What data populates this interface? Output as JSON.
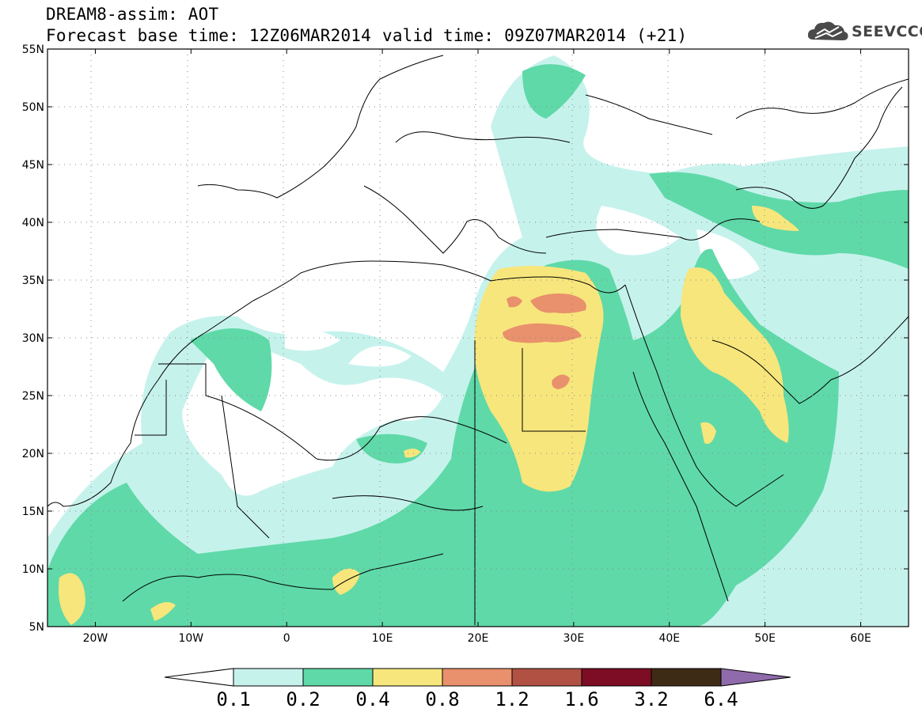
{
  "header": {
    "title": "DREAM8-assim: AOT",
    "base_time": "Forecast base time: 12Z06MAR2014",
    "valid_time": "valid time: 09Z07MAR2014 (+21)"
  },
  "logo": {
    "text": "SEEVCCC",
    "icon": "cloud-icon"
  },
  "map": {
    "lat_labels": [
      "55N",
      "50N",
      "45N",
      "40N",
      "35N",
      "30N",
      "25N",
      "20N",
      "15N",
      "10N",
      "5N"
    ],
    "lon_labels": [
      "20W",
      "10W",
      "0",
      "10E",
      "20E",
      "30E",
      "40E",
      "50E",
      "60E"
    ],
    "lat_range": [
      5,
      55
    ],
    "lon_range": [
      -25,
      65
    ],
    "grid": "dotted"
  },
  "colorbar": {
    "levels": [
      "0.1",
      "0.2",
      "0.4",
      "0.8",
      "1.2",
      "1.6",
      "3.2",
      "6.4"
    ],
    "colors": [
      "#ffffff",
      "#c6f2ec",
      "#5fd9a8",
      "#f7e67c",
      "#e9906c",
      "#b05144",
      "#7c0d25",
      "#3e2b15",
      "#8f6bab"
    ]
  }
}
